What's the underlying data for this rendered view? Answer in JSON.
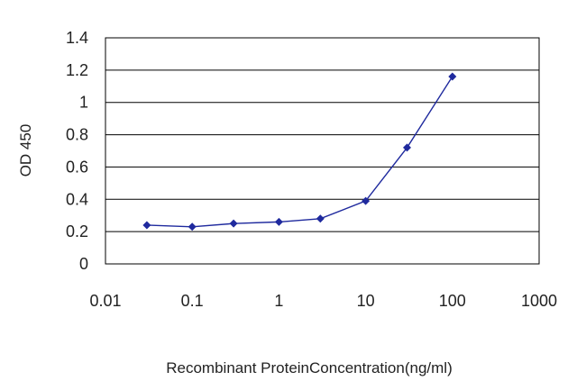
{
  "chart_data": {
    "type": "line",
    "title": "",
    "xlabel": "Recombinant ProteinConcentration(ng/ml)",
    "ylabel": "OD 450",
    "x_scale": "log",
    "xlim": [
      0.01,
      1000
    ],
    "ylim": [
      0,
      1.4
    ],
    "x_ticks": [
      0.01,
      0.1,
      1,
      10,
      100,
      1000
    ],
    "x_tick_labels": [
      "0.01",
      "0.1",
      "1",
      "10",
      "100",
      "1000"
    ],
    "y_ticks": [
      0,
      0.2,
      0.4,
      0.6,
      0.8,
      1,
      1.2,
      1.4
    ],
    "y_tick_labels": [
      "0",
      "0.2",
      "0.4",
      "0.6",
      "0.8",
      "1",
      "1.2",
      "1.4"
    ],
    "grid": "horizontal",
    "legend": "none",
    "series": [
      {
        "color": "#1f2a9e",
        "marker": "diamond",
        "x": [
          0.03,
          0.1,
          0.3,
          1,
          3,
          10,
          30,
          100
        ],
        "y": [
          0.24,
          0.23,
          0.25,
          0.26,
          0.28,
          0.39,
          0.72,
          1.16
        ]
      }
    ]
  }
}
